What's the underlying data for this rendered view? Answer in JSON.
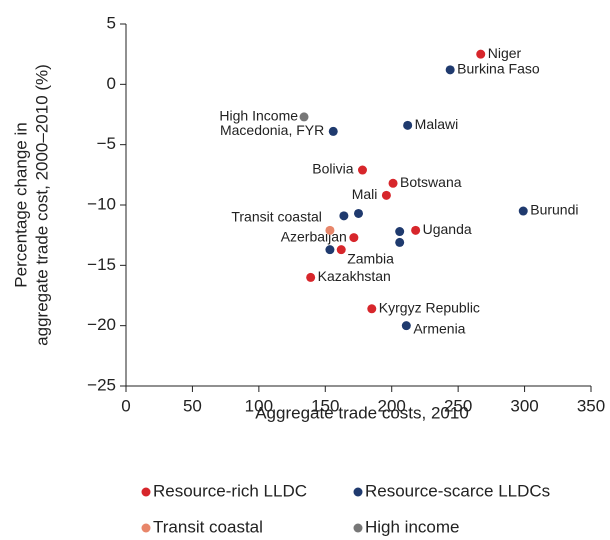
{
  "chart_data": {
    "type": "scatter",
    "xlabel": "Aggregate trade costs, 2010",
    "ylabel": [
      "Percentage change in",
      "aggregate trade cost, 2000–2010 (%)"
    ],
    "xlim": [
      0,
      350
    ],
    "xticks": [
      0,
      50,
      100,
      150,
      200,
      250,
      300,
      350
    ],
    "ylim": [
      -25,
      5
    ],
    "yticks": [
      5,
      0,
      {
        "value": -5,
        "label": "−5"
      },
      {
        "value": -10,
        "label": "−10"
      },
      {
        "value": -15,
        "label": "−15"
      },
      {
        "value": -20,
        "label": "−20"
      },
      {
        "value": -25,
        "label": "−25"
      }
    ],
    "series": [
      {
        "name": "Resource-rich LLDC",
        "color": "#d7262b",
        "x": [
          267,
          178,
          201,
          196,
          171.5,
          218,
          162,
          139,
          185
        ],
        "values": [
          2.5,
          -7.1,
          -8.2,
          -9.2,
          -12.7,
          -12.1,
          -13.7,
          -16,
          -18.6
        ],
        "labels": [
          "Niger",
          "Bolivia",
          "Botswana",
          "Mali",
          "Azerbaijan",
          "Uganda",
          "Zambia",
          "Kazakhstan",
          "Kyrgyz Republic"
        ]
      },
      {
        "name": "Resource-scarce LLDCs",
        "color": "#1f3a6e",
        "x": [
          244,
          156,
          212,
          299,
          164,
          175,
          206,
          206,
          153.5,
          211
        ],
        "values": [
          1.2,
          -3.9,
          -3.4,
          -10.5,
          -10.9,
          -10.7,
          -12.2,
          -13.1,
          -13.7,
          -20
        ],
        "labels": [
          "Burkina Faso",
          "Macedonia, FYR",
          "Malawi",
          "Burundi",
          "Transit coastal",
          null,
          null,
          null,
          null,
          "Armenia"
        ]
      },
      {
        "name": "Transit coastal",
        "color": "#e8866a",
        "x": [
          153.5
        ],
        "values": [
          -12.1
        ],
        "labels": [
          null
        ]
      },
      {
        "name": "High income",
        "color": "#777777",
        "x": [
          134
        ],
        "values": [
          -2.7
        ],
        "labels": [
          "High Income"
        ]
      }
    ]
  }
}
